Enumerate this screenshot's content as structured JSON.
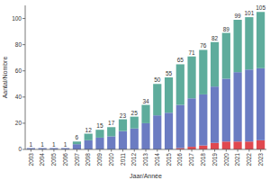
{
  "chart_data": {
    "type": "bar",
    "stacked": true,
    "x_label": "Jaar/Année",
    "y_label": "Aantal/Nombre",
    "categories": [
      "2003",
      "2004",
      "2005",
      "2006",
      "2007",
      "2008",
      "2009",
      "2010",
      "2011",
      "2012",
      "2013",
      "2014",
      "2015",
      "2016",
      "2017",
      "2018",
      "2019",
      "2020",
      "2021",
      "2022",
      "2023"
    ],
    "series": [
      {
        "color": "#e0484f",
        "values": [
          0,
          0,
          0,
          0,
          0,
          0,
          0,
          0,
          0,
          0,
          0,
          0,
          0,
          1,
          2,
          3,
          5,
          6,
          6,
          6,
          7
        ]
      },
      {
        "color": "#6b7cc2",
        "values": [
          1,
          1,
          1,
          1,
          4,
          7,
          9,
          10,
          14,
          16,
          20,
          26,
          28,
          33,
          37,
          39,
          43,
          48,
          53,
          55,
          55
        ]
      },
      {
        "color": "#5eac9c",
        "values": [
          0,
          0,
          0,
          0,
          2,
          5,
          6,
          7,
          9,
          9,
          14,
          24,
          27,
          31,
          32,
          34,
          34,
          35,
          40,
          40,
          43
        ]
      }
    ],
    "totals": [
      1,
      1,
      1,
      1,
      6,
      12,
      15,
      17,
      23,
      25,
      34,
      50,
      55,
      65,
      71,
      76,
      82,
      89,
      99,
      101,
      105
    ],
    "ylim": [
      0,
      110
    ],
    "yticks": [
      0,
      20,
      40,
      60,
      80,
      100
    ],
    "grid": false
  }
}
